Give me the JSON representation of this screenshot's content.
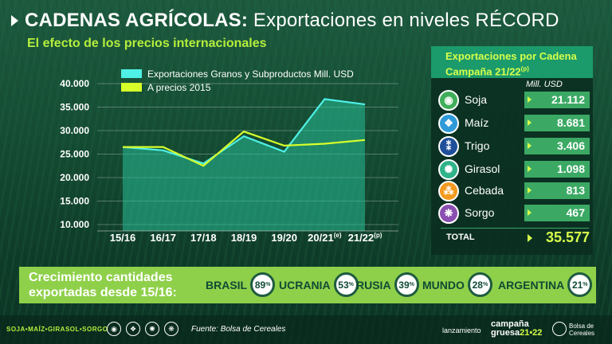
{
  "header": {
    "title_bold": "CADENAS AGRÍCOLAS:",
    "title_rest": " Exportaciones en niveles RÉCORD",
    "subtitle": "El efecto de los precios internacionales"
  },
  "chart_data": {
    "type": "area",
    "categories": [
      "15/16",
      "16/17",
      "17/18",
      "18/19",
      "19/20",
      "20/21",
      "21/22"
    ],
    "category_superscripts": [
      "",
      "",
      "",
      "",
      "",
      "(e)",
      "(p)"
    ],
    "ylim": [
      10000,
      40000
    ],
    "yticks": [
      "10.000",
      "15.000",
      "20.000",
      "25.000",
      "30.000",
      "35.000",
      "40.000"
    ],
    "ytick_values": [
      10000,
      15000,
      20000,
      25000,
      30000,
      35000,
      40000
    ],
    "series": [
      {
        "name": "Exportaciones Granos y Subproductos Mill. USD",
        "color": "#4ff0e6",
        "values": [
          26500,
          25800,
          23000,
          28800,
          25500,
          36700,
          35577
        ]
      },
      {
        "name": "A precios 2015",
        "color": "#d7ff2a",
        "values": [
          26500,
          26500,
          22500,
          29800,
          26800,
          27200,
          28000
        ]
      }
    ]
  },
  "panel": {
    "title_line1": "Exportaciones por Cadena",
    "title_line2": "Campaña 21/22",
    "title_sup": "(p)",
    "unit": "Mill. USD",
    "rows": [
      {
        "name": "Soja",
        "value": "21.112",
        "icon": "soybean-icon",
        "color": "#3fae5a",
        "glyph": "◉"
      },
      {
        "name": "Maíz",
        "value": "8.681",
        "icon": "corn-icon",
        "color": "#2f9ad8",
        "glyph": "❖"
      },
      {
        "name": "Trigo",
        "value": "3.406",
        "icon": "wheat-icon",
        "color": "#1f4f9a",
        "glyph": "⁑"
      },
      {
        "name": "Girasol",
        "value": "1.098",
        "icon": "sunflower-icon",
        "color": "#2fb38a",
        "glyph": "✺"
      },
      {
        "name": "Cebada",
        "value": "813",
        "icon": "barley-icon",
        "color": "#f29a1f",
        "glyph": "⁂"
      },
      {
        "name": "Sorgo",
        "value": "467",
        "icon": "sorghum-icon",
        "color": "#8a4fb0",
        "glyph": "❋"
      }
    ],
    "total_label": "TOTAL",
    "total_value": "35.577"
  },
  "growth": {
    "label_line1": "Crecimiento cantidades",
    "label_line2": "exportadas desde 15/16:",
    "items": [
      {
        "name": "BRASIL",
        "value": "89",
        "unit": "%"
      },
      {
        "name": "UCRANIA",
        "value": "53",
        "unit": "%"
      },
      {
        "name": "RUSIA",
        "value": "39",
        "unit": "%"
      },
      {
        "name": "MUNDO",
        "value": "28",
        "unit": "%"
      },
      {
        "name": "ARGENTINA",
        "value": "21",
        "unit": "%"
      }
    ]
  },
  "footer": {
    "crops": "SOJA•MAÍZ•GIRASOL•SORGO",
    "source": "Fuente: Bolsa de Cereales",
    "launch": "lanzamiento",
    "campaign_line1": "campaña",
    "campaign_line2a": "gruesa",
    "campaign_line2b": "21•22",
    "org": "Bolsa de Cereales"
  }
}
